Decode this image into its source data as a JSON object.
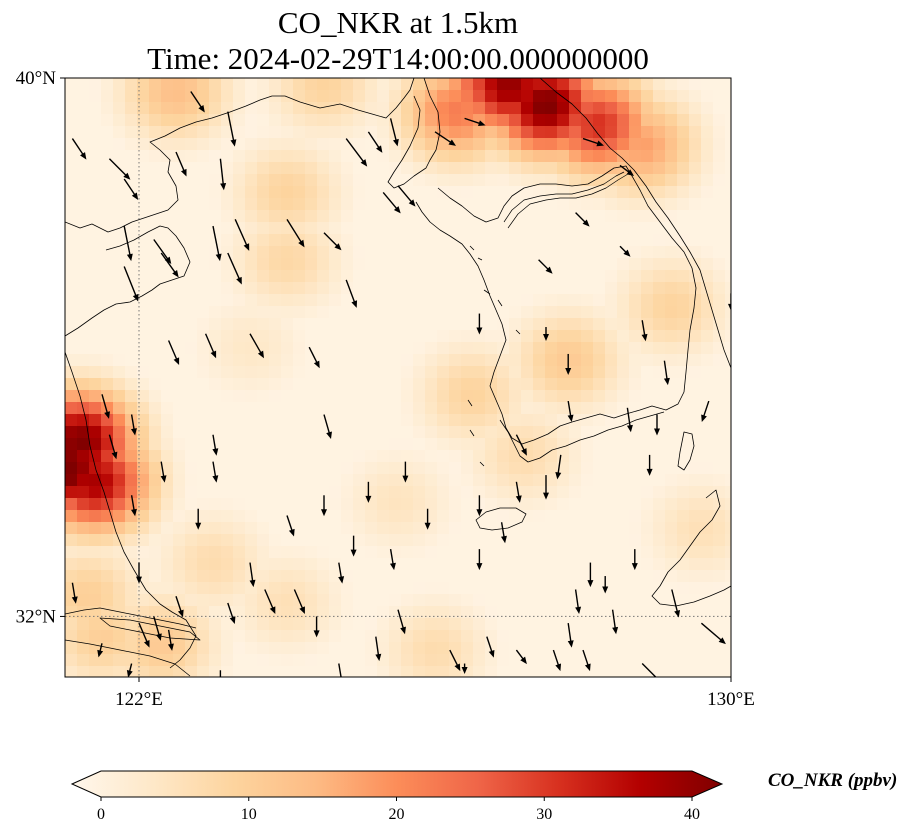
{
  "title": {
    "line1": "CO_NKR at 1.5km",
    "line2": "Time: 2024-02-29T14:00:00.000000000"
  },
  "map": {
    "lon_range": [
      121,
      130
    ],
    "lat_range": [
      31.1,
      40
    ],
    "lon_ticks": [
      {
        "value": 122,
        "label": "122°E"
      },
      {
        "value": 130,
        "label": "130°E"
      }
    ],
    "lat_ticks": [
      {
        "value": 40,
        "label": "40°N"
      },
      {
        "value": 32,
        "label": "32°N"
      }
    ],
    "gridlines": "dotted"
  },
  "colorbar": {
    "label": "CO_NKR (ppbv)",
    "min": 0,
    "max": 40,
    "ticks": [
      {
        "value": 0,
        "label": "0"
      },
      {
        "value": 10,
        "label": "10"
      },
      {
        "value": 20,
        "label": "20"
      },
      {
        "value": 30,
        "label": "30"
      },
      {
        "value": 40,
        "label": "40"
      }
    ],
    "colormap": "OrRd",
    "extend": "both",
    "stops": [
      "#fff7ec",
      "#fee8c8",
      "#fdd49e",
      "#fdbb84",
      "#fc8d59",
      "#ef6548",
      "#d7301f",
      "#b30000",
      "#7f0000"
    ]
  },
  "hotspots": [
    {
      "lon": 121.0,
      "lat": 34.2,
      "value": 42
    },
    {
      "lon": 121.2,
      "lat": 34.6,
      "value": 40
    },
    {
      "lon": 121.4,
      "lat": 34.0,
      "value": 36
    },
    {
      "lon": 127.0,
      "lat": 39.9,
      "value": 38
    },
    {
      "lon": 127.5,
      "lat": 39.6,
      "value": 40
    },
    {
      "lon": 128.2,
      "lat": 39.3,
      "value": 30
    },
    {
      "lon": 128.8,
      "lat": 39.0,
      "value": 18
    },
    {
      "lon": 126.8,
      "lat": 39.9,
      "value": 30
    },
    {
      "lon": 126.3,
      "lat": 39.5,
      "value": 22
    },
    {
      "lon": 122.5,
      "lat": 39.8,
      "value": 14
    },
    {
      "lon": 124.5,
      "lat": 39.9,
      "value": 10
    },
    {
      "lon": 124.0,
      "lat": 37.3,
      "value": 9
    },
    {
      "lon": 124.0,
      "lat": 38.3,
      "value": 10
    },
    {
      "lon": 127.8,
      "lat": 35.8,
      "value": 12
    },
    {
      "lon": 129.2,
      "lat": 36.6,
      "value": 10
    },
    {
      "lon": 126.5,
      "lat": 35.3,
      "value": 10
    },
    {
      "lon": 127.2,
      "lat": 34.4,
      "value": 8
    },
    {
      "lon": 121.5,
      "lat": 31.7,
      "value": 11
    },
    {
      "lon": 122.3,
      "lat": 31.6,
      "value": 12
    },
    {
      "lon": 123.0,
      "lat": 32.8,
      "value": 8
    },
    {
      "lon": 124.0,
      "lat": 32.2,
      "value": 7
    },
    {
      "lon": 121.3,
      "lat": 32.3,
      "value": 11
    },
    {
      "lon": 125.5,
      "lat": 33.7,
      "value": 6
    },
    {
      "lon": 123.5,
      "lat": 36.0,
      "value": 5
    },
    {
      "lon": 126.0,
      "lat": 31.5,
      "value": 8
    },
    {
      "lon": 129.6,
      "lat": 33.3,
      "value": 7
    }
  ],
  "wind_vectors": [
    [
      121.1,
      39.1,
      0.2,
      -0.3
    ],
    [
      121.6,
      38.8,
      0.3,
      -0.3
    ],
    [
      121.8,
      38.5,
      0.2,
      -0.3
    ],
    [
      121.8,
      37.8,
      0.1,
      -0.5
    ],
    [
      122.2,
      37.6,
      0.25,
      -0.35
    ],
    [
      122.5,
      38.9,
      0.15,
      -0.35
    ],
    [
      122.7,
      39.8,
      0.2,
      -0.3
    ],
    [
      123.2,
      39.5,
      0.1,
      -0.5
    ],
    [
      123.1,
      38.8,
      0.05,
      -0.45
    ],
    [
      123.0,
      37.8,
      0.1,
      -0.5
    ],
    [
      123.3,
      37.9,
      0.2,
      -0.45
    ],
    [
      123.2,
      37.4,
      0.2,
      -0.45
    ],
    [
      121.8,
      37.2,
      0.2,
      -0.5
    ],
    [
      122.3,
      37.4,
      0.25,
      -0.35
    ],
    [
      122.4,
      36.1,
      0.15,
      -0.35
    ],
    [
      122.9,
      36.2,
      0.15,
      -0.35
    ],
    [
      123.5,
      36.2,
      0.2,
      -0.35
    ],
    [
      124.3,
      36.0,
      0.15,
      -0.3
    ],
    [
      121.5,
      35.3,
      0.1,
      -0.35
    ],
    [
      121.6,
      34.7,
      0.1,
      -0.35
    ],
    [
      121.9,
      35.0,
      0.05,
      -0.3
    ],
    [
      122.3,
      34.3,
      0.05,
      -0.3
    ],
    [
      123.0,
      34.3,
      0.05,
      -0.3
    ],
    [
      123.0,
      34.7,
      0.05,
      -0.3
    ],
    [
      122.8,
      33.6,
      0.0,
      -0.3
    ],
    [
      121.9,
      33.8,
      0.05,
      -0.3
    ],
    [
      122.0,
      32.8,
      0.0,
      -0.3
    ],
    [
      122.5,
      32.3,
      0.1,
      -0.3
    ],
    [
      123.2,
      32.2,
      0.1,
      -0.3
    ],
    [
      122.4,
      31.8,
      0.05,
      -0.3
    ],
    [
      121.1,
      32.5,
      0.05,
      -0.3
    ],
    [
      121.5,
      31.6,
      -0.05,
      -0.2
    ],
    [
      121.9,
      31.3,
      -0.05,
      -0.2
    ],
    [
      122.0,
      31.9,
      0.15,
      -0.35
    ],
    [
      122.2,
      32.0,
      0.1,
      -0.35
    ],
    [
      123.5,
      32.8,
      0.05,
      -0.35
    ],
    [
      123.7,
      32.4,
      0.15,
      -0.35
    ],
    [
      124.1,
      32.4,
      0.15,
      -0.35
    ],
    [
      124.7,
      32.8,
      0.05,
      -0.3
    ],
    [
      124.4,
      32.0,
      0.0,
      -0.3
    ],
    [
      124.7,
      31.3,
      0.05,
      -0.3
    ],
    [
      125.5,
      32.1,
      0.1,
      -0.35
    ],
    [
      125.2,
      31.7,
      0.05,
      -0.35
    ],
    [
      124.0,
      33.5,
      0.1,
      -0.3
    ],
    [
      124.5,
      33.8,
      0.0,
      -0.3
    ],
    [
      124.9,
      33.2,
      0.0,
      -0.3
    ],
    [
      125.1,
      34.0,
      0.0,
      -0.3
    ],
    [
      125.4,
      33.0,
      0.05,
      -0.3
    ],
    [
      124.5,
      35.0,
      0.1,
      -0.35
    ],
    [
      124.0,
      37.9,
      0.25,
      -0.4
    ],
    [
      124.8,
      37.0,
      0.15,
      -0.4
    ],
    [
      124.5,
      37.7,
      0.25,
      -0.25
    ],
    [
      124.8,
      39.1,
      0.3,
      -0.4
    ],
    [
      125.1,
      39.2,
      0.2,
      -0.3
    ],
    [
      125.4,
      39.4,
      0.1,
      -0.4
    ],
    [
      125.3,
      38.3,
      0.25,
      -0.3
    ],
    [
      125.5,
      38.4,
      0.25,
      -0.3
    ],
    [
      126.0,
      39.2,
      0.3,
      -0.2
    ],
    [
      126.4,
      39.4,
      0.3,
      -0.1
    ],
    [
      126.6,
      36.5,
      0.0,
      -0.3
    ],
    [
      126.6,
      33.8,
      0.0,
      -0.3
    ],
    [
      126.6,
      33.0,
      0.0,
      -0.3
    ],
    [
      126.9,
      33.4,
      0.05,
      -0.3
    ],
    [
      127.1,
      34.0,
      0.05,
      -0.3
    ],
    [
      127.5,
      34.1,
      0.0,
      -0.35
    ],
    [
      127.7,
      34.4,
      -0.05,
      -0.35
    ],
    [
      127.8,
      35.2,
      0.05,
      -0.3
    ],
    [
      127.1,
      34.7,
      0.15,
      -0.3
    ],
    [
      127.5,
      36.3,
      0.0,
      -0.2
    ],
    [
      127.8,
      35.9,
      0.0,
      -0.3
    ],
    [
      127.4,
      37.3,
      0.2,
      -0.2
    ],
    [
      127.9,
      38.0,
      0.2,
      -0.2
    ],
    [
      128.5,
      38.7,
      0.2,
      -0.15
    ],
    [
      128.0,
      39.1,
      0.3,
      -0.1
    ],
    [
      128.5,
      37.5,
      0.15,
      -0.15
    ],
    [
      128.6,
      35.1,
      0.05,
      -0.35
    ],
    [
      128.9,
      34.4,
      0.0,
      -0.3
    ],
    [
      129.1,
      35.8,
      0.05,
      -0.35
    ],
    [
      129.0,
      35.0,
      0.0,
      -0.3
    ],
    [
      129.7,
      35.2,
      -0.1,
      -0.3
    ],
    [
      130.0,
      36.8,
      0.0,
      -0.25
    ],
    [
      128.8,
      36.4,
      0.05,
      -0.3
    ],
    [
      127.9,
      32.4,
      0.05,
      -0.35
    ],
    [
      127.8,
      31.9,
      0.05,
      -0.35
    ],
    [
      128.1,
      32.8,
      0.0,
      -0.35
    ],
    [
      128.3,
      32.6,
      0.0,
      -0.25
    ],
    [
      128.4,
      32.1,
      0.05,
      -0.35
    ],
    [
      129.2,
      32.4,
      0.1,
      -0.4
    ],
    [
      128.7,
      33.0,
      0.0,
      -0.3
    ],
    [
      127.1,
      31.5,
      0.15,
      -0.2
    ],
    [
      127.6,
      31.5,
      0.1,
      -0.3
    ],
    [
      128.0,
      31.5,
      0.1,
      -0.3
    ],
    [
      129.6,
      31.9,
      0.35,
      -0.3
    ],
    [
      128.8,
      31.3,
      0.3,
      -0.3
    ],
    [
      126.2,
      31.5,
      0.15,
      -0.3
    ],
    [
      126.7,
      31.7,
      0.1,
      -0.3
    ],
    [
      125.9,
      33.6,
      0.0,
      -0.3
    ],
    [
      125.6,
      34.3,
      0.0,
      -0.3
    ],
    [
      126.4,
      31.3,
      0.0,
      -0.15
    ],
    [
      123.1,
      31.2,
      0.0,
      -0.2
    ]
  ]
}
